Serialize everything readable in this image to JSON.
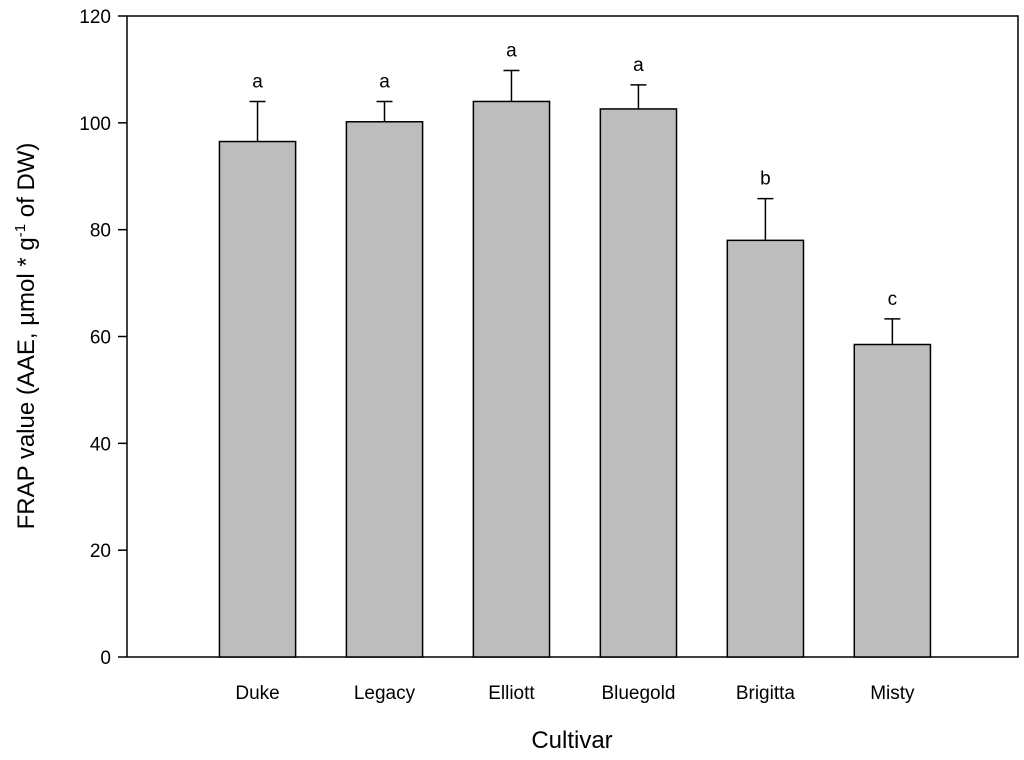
{
  "chart_data": {
    "type": "bar",
    "categories": [
      "Duke",
      "Legacy",
      "Elliott",
      "Bluegold",
      "Brigitta",
      "Misty"
    ],
    "values": [
      96.5,
      100.2,
      104.0,
      102.6,
      78.0,
      58.5
    ],
    "error": [
      7.5,
      3.8,
      5.8,
      4.5,
      7.8,
      4.8
    ],
    "significance": [
      "a",
      "a",
      "a",
      "a",
      "b",
      "c"
    ],
    "ylim": [
      0,
      120
    ],
    "yticks": [
      0,
      20,
      40,
      60,
      80,
      100,
      120
    ],
    "xlabel": "Cultivar",
    "ylabel": {
      "main": "FRAP value (AAE, µmol * g",
      "superscript": "-1",
      "suffix": " of DW)"
    },
    "colors": {
      "bar_fill": "#bdbdbd",
      "stroke": "#000000"
    },
    "grid": false
  }
}
